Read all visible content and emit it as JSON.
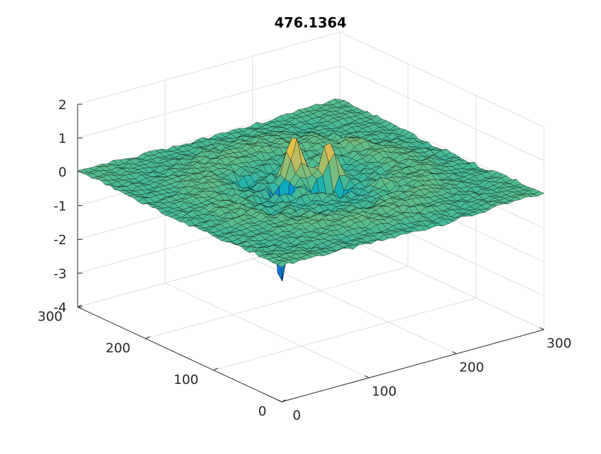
{
  "chart_data": {
    "type": "surface",
    "title": "476.1364",
    "xlabel": "",
    "ylabel": "",
    "zlabel": "",
    "xlim": [
      0,
      300
    ],
    "ylim": [
      0,
      300
    ],
    "zlim": [
      -4,
      2
    ],
    "x_ticks": [
      "0",
      "100",
      "200",
      "300"
    ],
    "y_ticks": [
      "0",
      "100",
      "200",
      "300"
    ],
    "z_ticks": [
      "2",
      "1",
      "0",
      "-1",
      "-2",
      "-3",
      "-4"
    ],
    "grid": true,
    "colormap": "parula",
    "edge_color": "#000000",
    "surface_features": [
      {
        "x": 125,
        "y": 160,
        "z": -4.1
      },
      {
        "x": 165,
        "y": 135,
        "z": -1.4
      },
      {
        "x": 150,
        "y": 175,
        "z": 1.2
      },
      {
        "x": 175,
        "y": 155,
        "z": 1.0
      },
      {
        "x": 150,
        "y": 140,
        "z": -0.9
      },
      {
        "x": 190,
        "y": 190,
        "z": 0.3
      },
      {
        "x": 110,
        "y": 195,
        "z": -0.3
      },
      {
        "x": 200,
        "y": 110,
        "z": 0.25
      },
      {
        "x": 240,
        "y": 200,
        "z": 0.2
      },
      {
        "x": 80,
        "y": 120,
        "z": -0.2
      }
    ]
  }
}
